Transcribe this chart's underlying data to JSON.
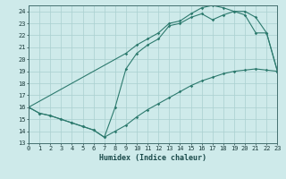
{
  "xlabel": "Humidex (Indice chaleur)",
  "background_color": "#ceeaea",
  "grid_color": "#aad0d0",
  "line_color": "#2d7a6e",
  "xlim": [
    0,
    23
  ],
  "ylim": [
    13,
    24.5
  ],
  "yticks": [
    13,
    14,
    15,
    16,
    17,
    18,
    19,
    20,
    21,
    22,
    23,
    24
  ],
  "xticks": [
    0,
    1,
    2,
    3,
    4,
    5,
    6,
    7,
    8,
    9,
    10,
    11,
    12,
    13,
    14,
    15,
    16,
    17,
    18,
    19,
    20,
    21,
    22,
    23
  ],
  "line1_x": [
    0,
    1,
    2,
    3,
    4,
    5,
    6,
    7,
    8,
    9,
    10,
    11,
    12,
    13,
    14,
    15,
    16,
    17,
    18,
    19,
    20,
    21,
    22,
    23
  ],
  "line1_y": [
    16.0,
    15.5,
    15.3,
    15.0,
    14.7,
    14.4,
    14.1,
    13.5,
    14.0,
    14.5,
    15.2,
    15.8,
    16.3,
    16.8,
    17.3,
    17.8,
    18.2,
    18.5,
    18.8,
    19.0,
    19.1,
    19.2,
    19.1,
    19.0
  ],
  "line2_x": [
    0,
    1,
    2,
    3,
    4,
    5,
    6,
    7,
    8,
    9,
    10,
    11,
    12,
    13,
    14,
    15,
    16,
    17,
    18,
    19,
    20,
    21,
    22,
    23
  ],
  "line2_y": [
    16.0,
    15.5,
    15.3,
    15.0,
    14.7,
    14.4,
    14.1,
    13.5,
    16.0,
    19.2,
    20.5,
    21.2,
    21.7,
    22.8,
    23.0,
    23.5,
    23.8,
    23.3,
    23.7,
    24.0,
    23.7,
    22.2,
    22.2,
    19.0
  ],
  "line3_x": [
    0,
    9,
    10,
    11,
    12,
    13,
    14,
    15,
    16,
    17,
    18,
    19,
    20,
    21,
    22,
    23
  ],
  "line3_y": [
    16.0,
    20.5,
    21.2,
    21.7,
    22.2,
    23.0,
    23.2,
    23.8,
    24.3,
    24.5,
    24.3,
    24.0,
    24.0,
    23.5,
    22.2,
    19.0
  ]
}
